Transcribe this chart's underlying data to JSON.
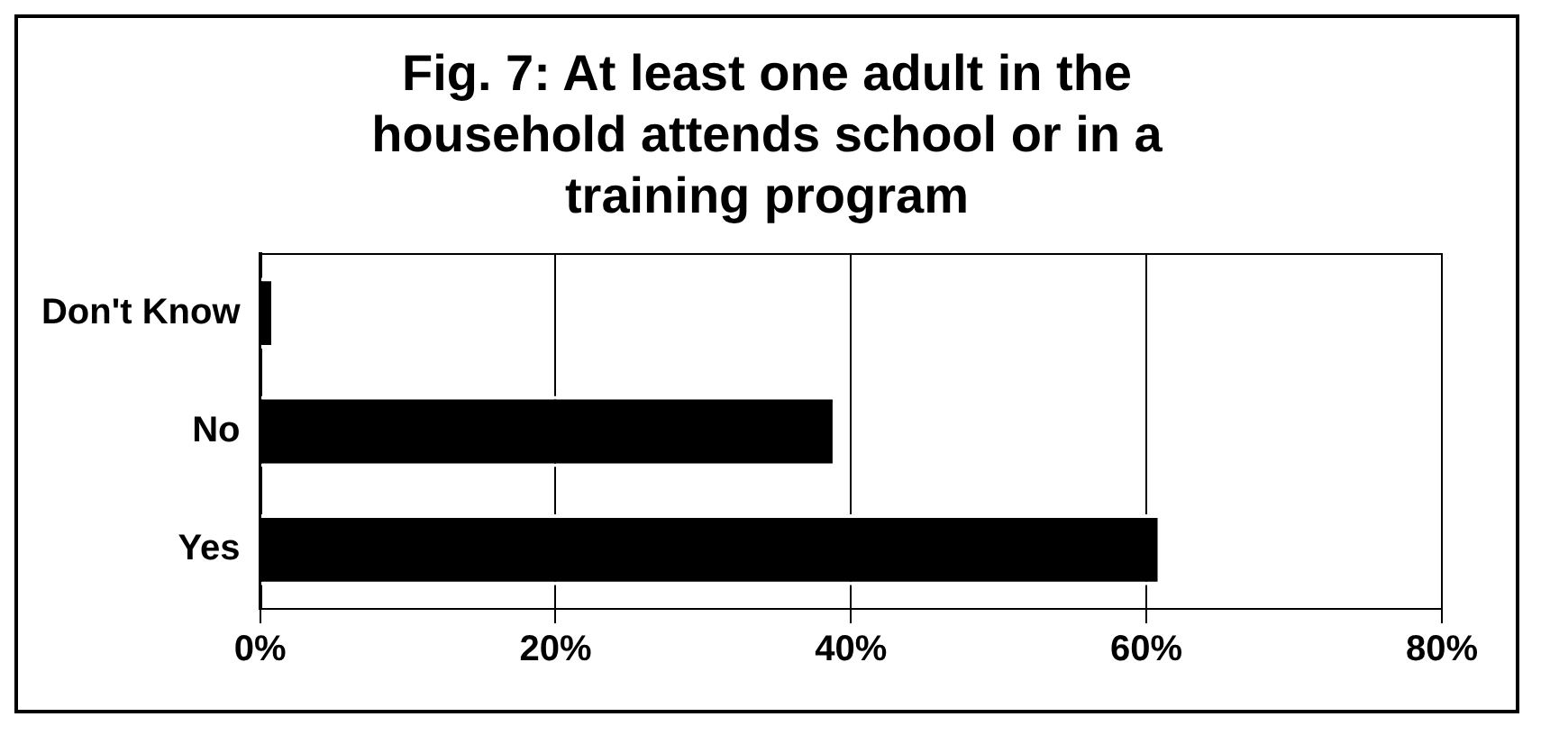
{
  "chart_data": {
    "type": "bar",
    "orientation": "horizontal",
    "title": "Fig. 7: At least one adult in the household attends school or in a training program",
    "categories": [
      "Don't Know",
      "No",
      "Yes"
    ],
    "values": [
      1,
      39,
      61
    ],
    "color": "#000000",
    "xlim": [
      0,
      80
    ],
    "xticks": [
      {
        "value": 0,
        "label": "0%"
      },
      {
        "value": 20,
        "label": "20%"
      },
      {
        "value": 40,
        "label": "40%"
      },
      {
        "value": 60,
        "label": "60%"
      },
      {
        "value": 80,
        "label": "80%"
      }
    ],
    "grid": "x"
  }
}
